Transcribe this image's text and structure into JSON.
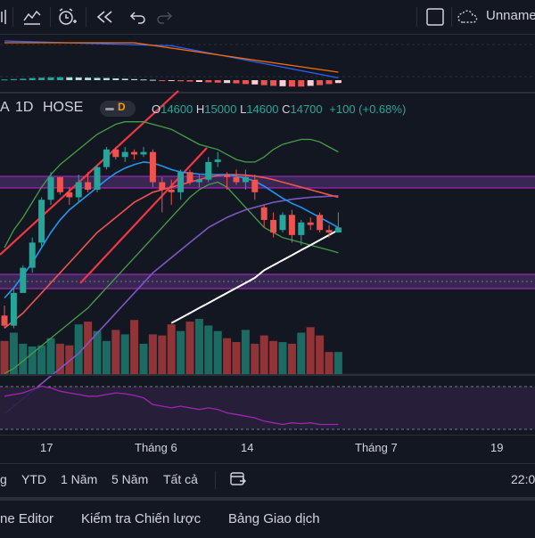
{
  "toolbar": {
    "icons": [
      "candles-icon",
      "indicators-icon",
      "alert-icon",
      "replay-icon",
      "undo-icon",
      "redo-icon",
      "layout-square-icon",
      "cloud-icon"
    ],
    "layout_name": "Unname"
  },
  "legend": {
    "interval": "1D",
    "exchange": "HOSE",
    "badge_letter": "D",
    "o_key": "O",
    "o_val": "14600",
    "h_key": "H",
    "h_val": "15000",
    "l_key": "L",
    "l_val": "14600",
    "c_key": "C",
    "c_val": "14700",
    "change": "+100 (+0.68%)",
    "up_color": "#26a69a",
    "down_color": "#ef5350"
  },
  "xaxis": {
    "labels": [
      "17",
      "Tháng 6",
      "14",
      "Tháng 7",
      "19"
    ],
    "time": "22:0"
  },
  "ranges": {
    "items": [
      "g",
      "YTD",
      "1 Năm",
      "5 Năm",
      "Tất cả"
    ]
  },
  "bottom_tabs": {
    "items": [
      "ne Editor",
      "Kiểm tra Chiến lược",
      "Bảng Giao dịch"
    ]
  },
  "chart_data": {
    "type": "candlestick",
    "candles": [
      {
        "o": 12950,
        "h": 13150,
        "l": 12700,
        "c": 12750
      },
      {
        "o": 12750,
        "h": 13500,
        "l": 12700,
        "c": 13400
      },
      {
        "o": 13400,
        "h": 13950,
        "l": 13400,
        "c": 13900
      },
      {
        "o": 13900,
        "h": 14500,
        "l": 13800,
        "c": 14400
      },
      {
        "o": 14400,
        "h": 15300,
        "l": 14300,
        "c": 15250
      },
      {
        "o": 15250,
        "h": 15800,
        "l": 15150,
        "c": 15700
      },
      {
        "o": 15700,
        "h": 15700,
        "l": 15350,
        "c": 15400
      },
      {
        "o": 15400,
        "h": 15500,
        "l": 15150,
        "c": 15300
      },
      {
        "o": 15300,
        "h": 15750,
        "l": 15200,
        "c": 15600
      },
      {
        "o": 15600,
        "h": 15800,
        "l": 15400,
        "c": 15450
      },
      {
        "o": 15450,
        "h": 15950,
        "l": 15400,
        "c": 15900
      },
      {
        "o": 15900,
        "h": 16300,
        "l": 15850,
        "c": 16250
      },
      {
        "o": 16250,
        "h": 16300,
        "l": 16050,
        "c": 16100
      },
      {
        "o": 16100,
        "h": 16300,
        "l": 16000,
        "c": 16200
      },
      {
        "o": 16200,
        "h": 16250,
        "l": 16050,
        "c": 16150
      },
      {
        "o": 16150,
        "h": 16300,
        "l": 16100,
        "c": 16200
      },
      {
        "o": 16200,
        "h": 16250,
        "l": 15500,
        "c": 15600
      },
      {
        "o": 15600,
        "h": 15700,
        "l": 15000,
        "c": 15450
      },
      {
        "o": 15450,
        "h": 15650,
        "l": 15150,
        "c": 15400
      },
      {
        "o": 15400,
        "h": 15850,
        "l": 15250,
        "c": 15800
      },
      {
        "o": 15800,
        "h": 15850,
        "l": 15550,
        "c": 15600
      },
      {
        "o": 15600,
        "h": 15750,
        "l": 15500,
        "c": 15650
      },
      {
        "o": 15650,
        "h": 16100,
        "l": 15600,
        "c": 16000
      },
      {
        "o": 16000,
        "h": 16200,
        "l": 15900,
        "c": 16050
      },
      {
        "o": 15750,
        "h": 15800,
        "l": 15450,
        "c": 15700
      },
      {
        "o": 15700,
        "h": 15850,
        "l": 15550,
        "c": 15600
      },
      {
        "o": 15600,
        "h": 15850,
        "l": 15450,
        "c": 15700
      },
      {
        "o": 15650,
        "h": 15750,
        "l": 15250,
        "c": 15400
      },
      {
        "o": 15100,
        "h": 15150,
        "l": 14700,
        "c": 14850
      },
      {
        "o": 14850,
        "h": 15000,
        "l": 14500,
        "c": 14600
      },
      {
        "o": 14650,
        "h": 15000,
        "l": 14600,
        "c": 14950
      },
      {
        "o": 14950,
        "h": 15050,
        "l": 14400,
        "c": 14550
      },
      {
        "o": 14550,
        "h": 14850,
        "l": 14350,
        "c": 14800
      },
      {
        "o": 14800,
        "h": 14900,
        "l": 14650,
        "c": 14750
      },
      {
        "o": 14950,
        "h": 15000,
        "l": 14600,
        "c": 14650
      },
      {
        "o": 14650,
        "h": 14750,
        "l": 14500,
        "c": 14600
      },
      {
        "o": 14600,
        "h": 15000,
        "l": 14600,
        "c": 14700
      }
    ],
    "volume": [
      60,
      75,
      55,
      50,
      52,
      65,
      55,
      52,
      90,
      95,
      78,
      60,
      80,
      72,
      98,
      55,
      72,
      70,
      90,
      78,
      95,
      100,
      88,
      78,
      65,
      58,
      80,
      55,
      70,
      60,
      58,
      55,
      75,
      85,
      70,
      40,
      40
    ],
    "macd_hist": [
      0.1,
      0.15,
      0.2,
      0.3,
      0.35,
      0.4,
      0.42,
      0.4,
      0.38,
      0.35,
      0.32,
      0.3,
      0.25,
      0.2,
      0.15,
      0.1,
      0.05,
      -0.05,
      -0.1,
      -0.15,
      -0.2,
      -0.25,
      -0.3,
      -0.35,
      -0.4,
      -0.45,
      -0.55,
      -0.6,
      -0.7,
      -0.8,
      -0.85,
      -0.9,
      -0.9,
      -0.8,
      -0.7,
      -0.55,
      -0.4
    ],
    "rsi": [
      62,
      64,
      66,
      70,
      74,
      72,
      68,
      66,
      64,
      62,
      62,
      64,
      66,
      65,
      63,
      60,
      52,
      50,
      48,
      50,
      48,
      46,
      48,
      46,
      42,
      40,
      38,
      36,
      32,
      30,
      28,
      30,
      29,
      30,
      28,
      28,
      28
    ],
    "bands": {
      "upper": [
        14300,
        14650,
        14900,
        15200,
        15500,
        15750,
        15950,
        16100,
        16250,
        16400,
        16550,
        16650,
        16750,
        16800,
        16800,
        16800,
        16750,
        16700,
        16650,
        16550,
        16450,
        16350,
        16300,
        16250,
        16150,
        16050,
        16000,
        16000,
        16100,
        16250,
        16350,
        16400,
        16450,
        16450,
        16400,
        16300,
        16200
      ],
      "lower": [
        11800,
        11900,
        12050,
        12200,
        12350,
        12500,
        12650,
        12800,
        12950,
        13100,
        13300,
        13500,
        13700,
        13900,
        14100,
        14300,
        14500,
        14700,
        14900,
        15100,
        15300,
        15450,
        15550,
        15600,
        15500,
        15300,
        15100,
        14900,
        14700,
        14600,
        14500,
        14450,
        14400,
        14350,
        14300,
        14250,
        14200
      ]
    },
    "ma_fast": [
      13300,
      13500,
      13750,
      14000,
      14300,
      14600,
      14850,
      15050,
      15200,
      15350,
      15500,
      15650,
      15780,
      15880,
      15950,
      16000,
      15980,
      15920,
      15850,
      15800,
      15780,
      15760,
      15750,
      15750,
      15750,
      15720,
      15680,
      15620,
      15520,
      15400,
      15280,
      15180,
      15100,
      15000,
      14900,
      14800,
      14700
    ],
    "ma_slow": [
      12700,
      12850,
      13000,
      13200,
      13400,
      13600,
      13800,
      14000,
      14200,
      14400,
      14600,
      14750,
      14900,
      15050,
      15200,
      15300,
      15400,
      15450,
      15500,
      15550,
      15600,
      15650,
      15700,
      15730,
      15750,
      15750,
      15740,
      15720,
      15690,
      15650,
      15600,
      15550,
      15500,
      15450,
      15400,
      15350,
      15300
    ],
    "ma_long": [
      11000,
      11150,
      11300,
      11450,
      11600,
      11750,
      11900,
      12050,
      12200,
      12400,
      12600,
      12800,
      13000,
      13200,
      13400,
      13600,
      13800,
      13950,
      14100,
      14250,
      14400,
      14550,
      14700,
      14800,
      14900,
      14980,
      15050,
      15100,
      15150,
      15200,
      15230,
      15260,
      15280,
      15300,
      15310,
      15320,
      15330
    ],
    "ma_white": [
      null,
      null,
      null,
      null,
      null,
      null,
      null,
      null,
      null,
      null,
      null,
      null,
      null,
      null,
      null,
      null,
      null,
      null,
      12800,
      12900,
      13000,
      13100,
      13200,
      13300,
      13400,
      13500,
      13600,
      13700,
      13850,
      13950,
      14050,
      14150,
      14250,
      14350,
      14450,
      14550,
      14650
    ],
    "ylim": [
      12000,
      16600
    ]
  }
}
